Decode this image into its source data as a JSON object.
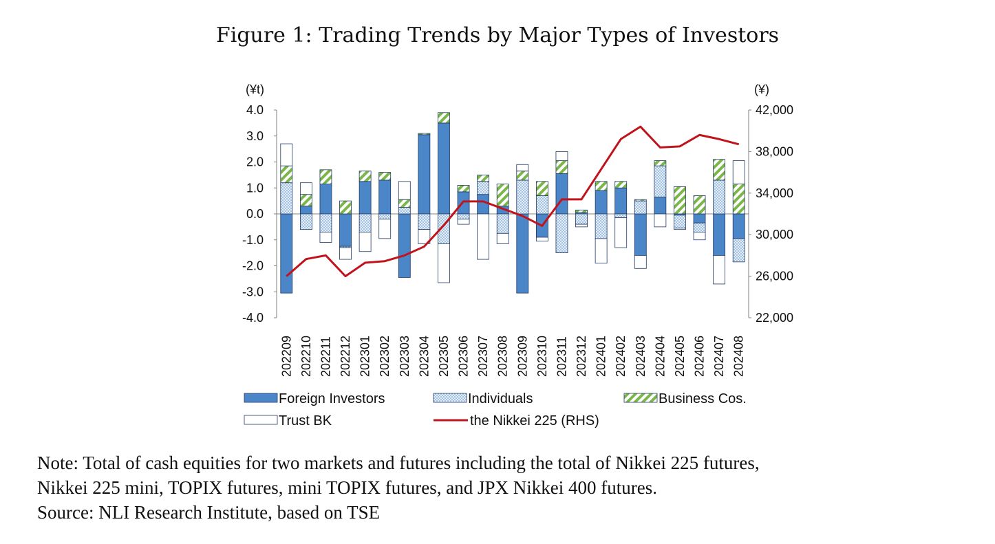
{
  "title": "Figure 1: Trading Trends by Major Types of Investors",
  "notes": [
    "Note: Total of cash equities for two markets and futures including the total of Nikkei 225 futures,",
    "Nikkei 225 mini, TOPIX futures, mini TOPIX futures, and JPX Nikkei 400 futures.",
    "Source: NLI Research Institute, based on TSE"
  ],
  "chart_data": {
    "type": "bar",
    "stacked": true,
    "left_unit": "(¥t)",
    "right_unit": "(¥)",
    "left_ticks": [
      "4.0",
      "3.0",
      "2.0",
      "1.0",
      "0.0",
      "-1.0",
      "-2.0",
      "-3.0",
      "-4.0"
    ],
    "right_ticks": [
      "42,000",
      "38,000",
      "34,000",
      "30,000",
      "26,000",
      "22,000"
    ],
    "ylim": [
      -4,
      4
    ],
    "y2lim": [
      22000,
      42000
    ],
    "categories": [
      "202209",
      "202210",
      "202211",
      "202212",
      "202301",
      "202302",
      "202303",
      "202304",
      "202305",
      "202306",
      "202307",
      "202308",
      "202309",
      "202310",
      "202311",
      "202312",
      "202401",
      "202402",
      "202403",
      "202404",
      "202405",
      "202406",
      "202407",
      "202408"
    ],
    "series": [
      {
        "name": "Foreign Investors",
        "values": [
          -3.05,
          0.3,
          1.15,
          -1.25,
          1.25,
          1.3,
          -2.45,
          3.05,
          3.5,
          0.85,
          0.75,
          0.3,
          -3.05,
          -0.9,
          1.55,
          0.05,
          0.9,
          1.0,
          -1.6,
          0.65,
          -0.05,
          -0.35,
          -1.6,
          -0.95
        ]
      },
      {
        "name": "Individuals",
        "values": [
          1.2,
          -0.6,
          -0.7,
          -0.05,
          -0.7,
          -0.2,
          0.25,
          -0.6,
          -1.15,
          -0.2,
          0.5,
          -0.75,
          1.3,
          0.7,
          -1.5,
          -0.4,
          -0.95,
          -0.15,
          0.5,
          1.2,
          -0.5,
          -0.35,
          1.3,
          -0.9
        ]
      },
      {
        "name": "Business Cos.",
        "values": [
          0.65,
          0.45,
          0.55,
          0.5,
          0.4,
          0.3,
          0.3,
          0.05,
          0.4,
          0.25,
          0.25,
          0.85,
          0.35,
          0.55,
          0.5,
          0.1,
          0.35,
          0.25,
          0.05,
          0.2,
          1.05,
          0.7,
          0.8,
          1.15
        ]
      },
      {
        "name": "Trust BK",
        "values": [
          0.85,
          0.45,
          -0.4,
          -0.45,
          -0.75,
          -0.75,
          0.7,
          -0.55,
          -1.5,
          -0.2,
          -1.75,
          -0.4,
          0.25,
          -0.15,
          0.35,
          -0.1,
          -0.95,
          -1.15,
          -0.5,
          -0.5,
          -0.05,
          -0.3,
          -1.1,
          0.9
        ]
      }
    ],
    "line_series": {
      "name": "the Nikkei 225 (RHS)",
      "axis": "right",
      "values": [
        26000,
        27650,
        28000,
        26000,
        27300,
        27450,
        28000,
        28850,
        30900,
        33200,
        33200,
        32500,
        31800,
        30850,
        33400,
        33400,
        36300,
        39200,
        40400,
        38400,
        38500,
        39600,
        39200,
        38700
      ]
    },
    "legend": [
      "Foreign Investors",
      "Individuals",
      "Business Cos.",
      "Trust BK",
      "the Nikkei 225 (RHS)"
    ],
    "legend_position": "bottom",
    "colors": {
      "foreign": "#4a86c8",
      "foreign_edge": "#1f3864",
      "individuals_dot": "#5b8fc7",
      "business_green": "#7ab648",
      "line": "#c0141c"
    }
  }
}
